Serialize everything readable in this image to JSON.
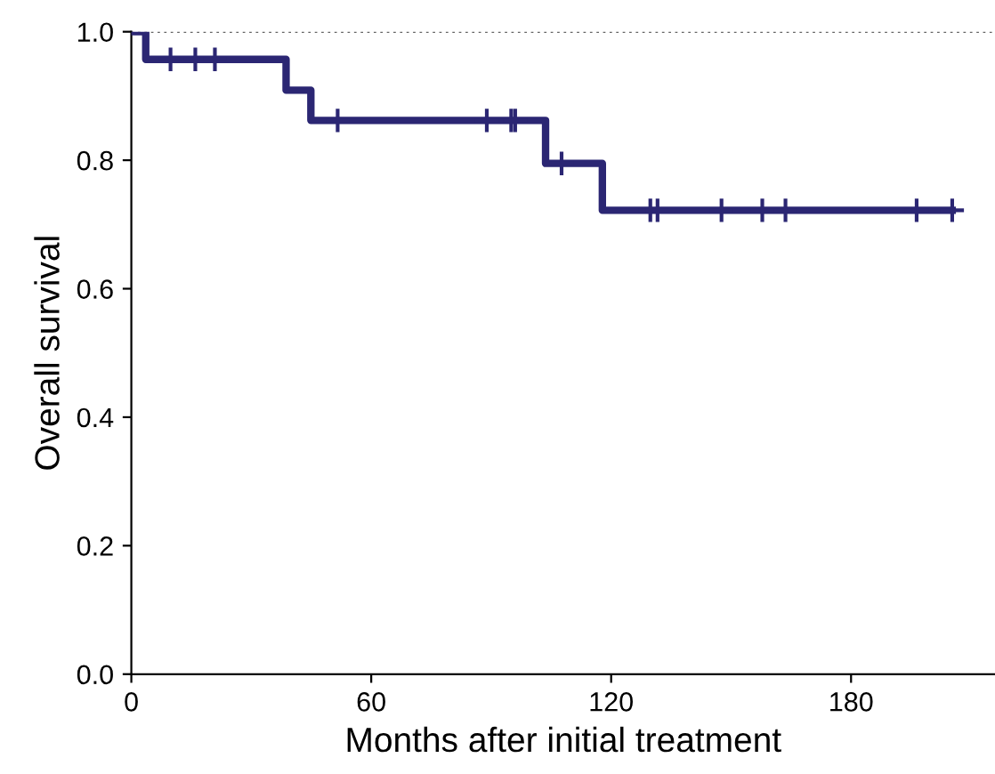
{
  "chart_data": {
    "type": "step",
    "xlabel": "Months after initial treatment",
    "ylabel": "Overall survival",
    "xlim": [
      0,
      216
    ],
    "ylim": [
      0,
      1.0
    ],
    "xticks": [
      0,
      60,
      120,
      180
    ],
    "yticks": [
      {
        "value": 0,
        "label": "0.0"
      },
      0.2,
      0.4,
      0.6,
      0.8,
      {
        "value": 1,
        "label": "1.0"
      }
    ],
    "grid": false,
    "ref_lines": [
      {
        "axis": "y",
        "value": 1.0,
        "color": "#666666",
        "line_style": "dotted"
      }
    ],
    "series": [
      {
        "color": "#2b2673",
        "x": [
          0,
          3.6,
          38.7,
          44.9,
          103.6,
          117.8,
          205.3
        ],
        "values": [
          1.0,
          0.957,
          0.909,
          0.862,
          0.795,
          0.722,
          0.722
        ],
        "marker": "none"
      },
      {
        "type": "scatter",
        "color": "#2b2673",
        "x": [
          9.8,
          16,
          20.9,
          51.6,
          88.9,
          95,
          96,
          107.6,
          129.8,
          131.6,
          147.6,
          157.8,
          163.6,
          196.4,
          205.3
        ],
        "values": [
          0.957,
          0.957,
          0.957,
          0.862,
          0.862,
          0.862,
          0.862,
          0.795,
          0.722,
          0.722,
          0.722,
          0.722,
          0.722,
          0.722,
          0.722
        ],
        "marker": "cross"
      }
    ]
  }
}
